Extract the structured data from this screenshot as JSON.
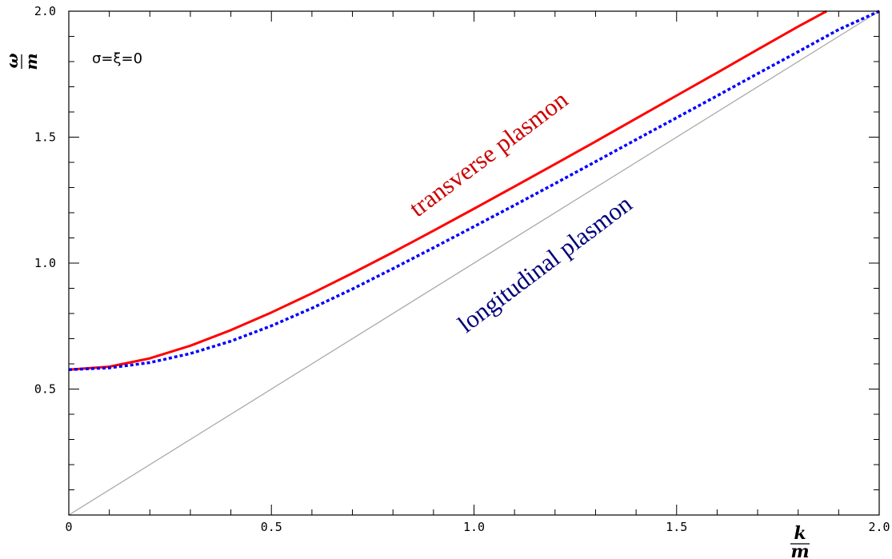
{
  "chart_data": {
    "type": "line",
    "xlim": [
      0,
      2.0
    ],
    "ylim": [
      0,
      2.0
    ],
    "x_ticks": [
      "0",
      "0.5",
      "1.0",
      "1.5",
      "2.0"
    ],
    "y_ticks": [
      "0.5",
      "1.0",
      "1.5",
      "2.0"
    ],
    "xlabel": {
      "numerator": "k",
      "denominator": "m"
    },
    "ylabel": {
      "numerator": "ω",
      "denominator": "m"
    },
    "parameter_label": "σ=ξ=0",
    "grid": false,
    "series": [
      {
        "name": "transverse plasmon",
        "color": "#ff0000",
        "style": "solid",
        "points": [
          [
            0.0,
            0.577
          ],
          [
            0.1,
            0.589
          ],
          [
            0.2,
            0.622
          ],
          [
            0.3,
            0.672
          ],
          [
            0.4,
            0.734
          ],
          [
            0.5,
            0.804
          ],
          [
            0.6,
            0.88
          ],
          [
            0.7,
            0.96
          ],
          [
            0.8,
            1.043
          ],
          [
            0.9,
            1.129
          ],
          [
            1.0,
            1.216
          ],
          [
            1.1,
            1.304
          ],
          [
            1.2,
            1.393
          ],
          [
            1.3,
            1.483
          ],
          [
            1.4,
            1.574
          ],
          [
            1.5,
            1.665
          ],
          [
            1.6,
            1.756
          ],
          [
            1.7,
            1.848
          ],
          [
            1.8,
            1.939
          ],
          [
            1.87,
            2.0
          ]
        ]
      },
      {
        "name": "longitudinal plasmon",
        "color": "#0000ff",
        "style": "dotted",
        "points": [
          [
            0.0,
            0.577
          ],
          [
            0.1,
            0.584
          ],
          [
            0.2,
            0.605
          ],
          [
            0.3,
            0.641
          ],
          [
            0.4,
            0.69
          ],
          [
            0.5,
            0.751
          ],
          [
            0.6,
            0.821
          ],
          [
            0.7,
            0.897
          ],
          [
            0.8,
            0.978
          ],
          [
            0.9,
            1.061
          ],
          [
            1.0,
            1.145
          ],
          [
            1.1,
            1.23
          ],
          [
            1.2,
            1.316
          ],
          [
            1.3,
            1.403
          ],
          [
            1.4,
            1.49
          ],
          [
            1.5,
            1.577
          ],
          [
            1.6,
            1.664
          ],
          [
            1.7,
            1.752
          ],
          [
            1.8,
            1.839
          ],
          [
            1.9,
            1.927
          ],
          [
            2.0,
            2.0
          ]
        ]
      },
      {
        "color": "#aaaaaa",
        "style": "solid",
        "points": [
          [
            0,
            0
          ],
          [
            2.0,
            2.0
          ]
        ]
      }
    ],
    "annotations": [
      {
        "text": "transverse plasmon",
        "color": "#cc0000",
        "anchor_x": 0.86,
        "anchor_y": 1.18,
        "angle": -37
      },
      {
        "text": "longitudinal plasmon",
        "color": "#00007a",
        "anchor_x": 0.98,
        "anchor_y": 0.72,
        "angle": -37
      }
    ]
  }
}
